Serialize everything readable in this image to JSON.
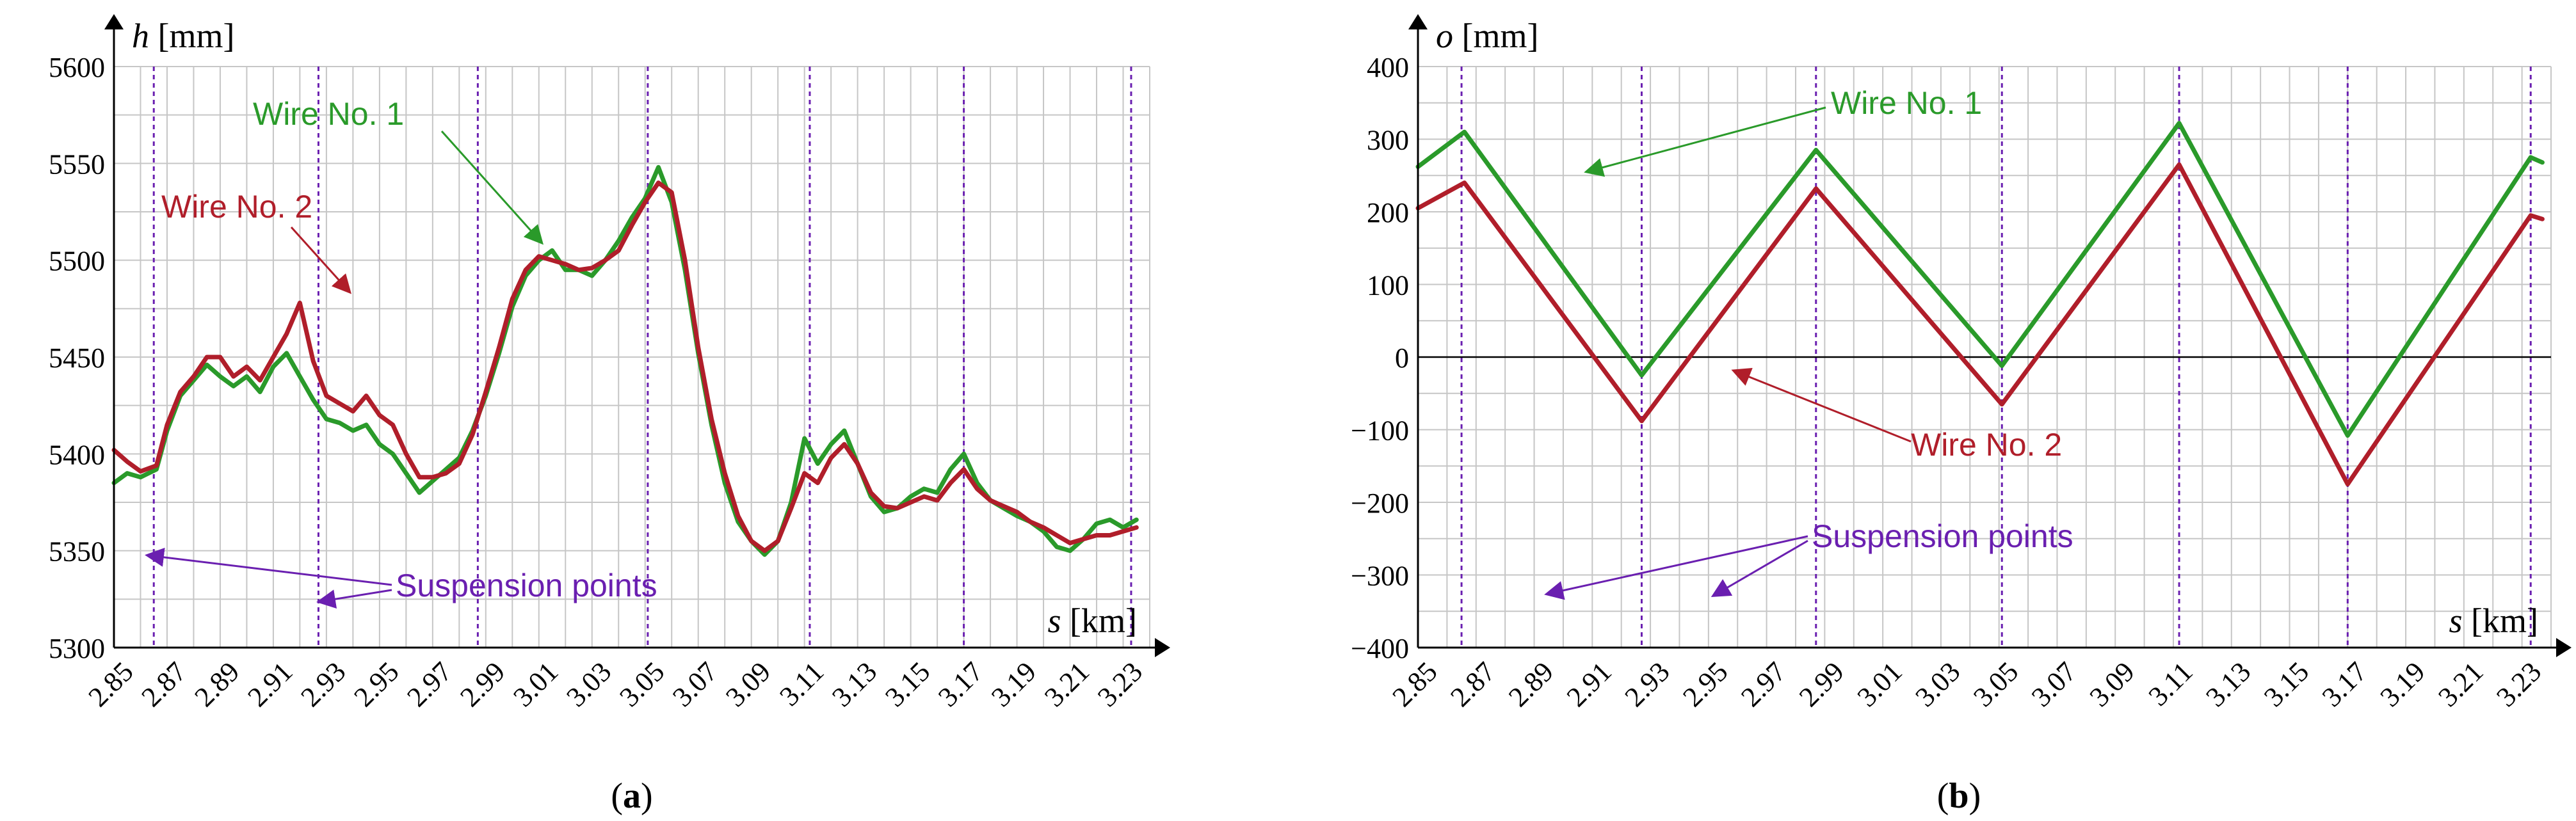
{
  "chart_data": [
    {
      "type": "line",
      "panel_label": "a",
      "ylabel_symbol": "h",
      "ylabel_unit": "[mm]",
      "xlabel_symbol": "s",
      "xlabel_unit": "[km]",
      "xlim": [
        2.85,
        3.24
      ],
      "ylim": [
        5300,
        5600
      ],
      "y_ticks": [
        "5300",
        "5350",
        "5400",
        "5450",
        "5500",
        "5550",
        "5600"
      ],
      "x_ticks": [
        "2.85",
        "2.87",
        "2.89",
        "2.91",
        "2.93",
        "2.95",
        "2.97",
        "2.99",
        "3.01",
        "3.03",
        "3.05",
        "3.07",
        "3.09",
        "3.11",
        "3.13",
        "3.15",
        "3.17",
        "3.19",
        "3.21",
        "3.23"
      ],
      "grid": true,
      "suspension_points": [
        2.865,
        2.927,
        2.987,
        3.051,
        3.112,
        3.17,
        3.233
      ],
      "series": [
        {
          "name": "Wire No. 1",
          "color": "#2a9a2a",
          "points": [
            [
              2.85,
              5385
            ],
            [
              2.855,
              5390
            ],
            [
              2.86,
              5388
            ],
            [
              2.866,
              5392
            ],
            [
              2.87,
              5412
            ],
            [
              2.875,
              5430
            ],
            [
              2.88,
              5438
            ],
            [
              2.885,
              5446
            ],
            [
              2.89,
              5440
            ],
            [
              2.895,
              5435
            ],
            [
              2.9,
              5440
            ],
            [
              2.905,
              5432
            ],
            [
              2.91,
              5445
            ],
            [
              2.915,
              5452
            ],
            [
              2.92,
              5440
            ],
            [
              2.925,
              5428
            ],
            [
              2.93,
              5418
            ],
            [
              2.935,
              5416
            ],
            [
              2.94,
              5412
            ],
            [
              2.945,
              5415
            ],
            [
              2.95,
              5405
            ],
            [
              2.955,
              5400
            ],
            [
              2.96,
              5390
            ],
            [
              2.965,
              5380
            ],
            [
              2.97,
              5386
            ],
            [
              2.975,
              5392
            ],
            [
              2.98,
              5398
            ],
            [
              2.985,
              5412
            ],
            [
              2.99,
              5430
            ],
            [
              2.995,
              5452
            ],
            [
              3.0,
              5476
            ],
            [
              3.005,
              5492
            ],
            [
              3.01,
              5500
            ],
            [
              3.015,
              5505
            ],
            [
              3.02,
              5495
            ],
            [
              3.025,
              5495
            ],
            [
              3.03,
              5492
            ],
            [
              3.035,
              5500
            ],
            [
              3.04,
              5510
            ],
            [
              3.045,
              5522
            ],
            [
              3.05,
              5532
            ],
            [
              3.055,
              5548
            ],
            [
              3.06,
              5530
            ],
            [
              3.065,
              5495
            ],
            [
              3.07,
              5452
            ],
            [
              3.075,
              5415
            ],
            [
              3.08,
              5385
            ],
            [
              3.085,
              5365
            ],
            [
              3.09,
              5355
            ],
            [
              3.095,
              5348
            ],
            [
              3.1,
              5355
            ],
            [
              3.105,
              5375
            ],
            [
              3.11,
              5408
            ],
            [
              3.115,
              5395
            ],
            [
              3.12,
              5405
            ],
            [
              3.125,
              5412
            ],
            [
              3.13,
              5395
            ],
            [
              3.135,
              5378
            ],
            [
              3.14,
              5370
            ],
            [
              3.145,
              5372
            ],
            [
              3.15,
              5378
            ],
            [
              3.155,
              5382
            ],
            [
              3.16,
              5380
            ],
            [
              3.165,
              5392
            ],
            [
              3.17,
              5400
            ],
            [
              3.175,
              5385
            ],
            [
              3.18,
              5376
            ],
            [
              3.185,
              5372
            ],
            [
              3.19,
              5368
            ],
            [
              3.195,
              5365
            ],
            [
              3.2,
              5360
            ],
            [
              3.205,
              5352
            ],
            [
              3.21,
              5350
            ],
            [
              3.215,
              5356
            ],
            [
              3.22,
              5364
            ],
            [
              3.225,
              5366
            ],
            [
              3.23,
              5362
            ],
            [
              3.235,
              5366
            ]
          ]
        },
        {
          "name": "Wire No. 2",
          "color": "#b01e2a",
          "points": [
            [
              2.85,
              5402
            ],
            [
              2.855,
              5396
            ],
            [
              2.86,
              5391
            ],
            [
              2.866,
              5394
            ],
            [
              2.87,
              5415
            ],
            [
              2.875,
              5432
            ],
            [
              2.88,
              5440
            ],
            [
              2.885,
              5450
            ],
            [
              2.89,
              5450
            ],
            [
              2.895,
              5440
            ],
            [
              2.9,
              5445
            ],
            [
              2.905,
              5438
            ],
            [
              2.91,
              5450
            ],
            [
              2.915,
              5462
            ],
            [
              2.92,
              5478
            ],
            [
              2.925,
              5448
            ],
            [
              2.93,
              5430
            ],
            [
              2.935,
              5426
            ],
            [
              2.94,
              5422
            ],
            [
              2.945,
              5430
            ],
            [
              2.95,
              5420
            ],
            [
              2.955,
              5415
            ],
            [
              2.96,
              5400
            ],
            [
              2.965,
              5388
            ],
            [
              2.97,
              5388
            ],
            [
              2.975,
              5390
            ],
            [
              2.98,
              5395
            ],
            [
              2.985,
              5410
            ],
            [
              2.99,
              5432
            ],
            [
              2.995,
              5455
            ],
            [
              3.0,
              5480
            ],
            [
              3.005,
              5495
            ],
            [
              3.01,
              5502
            ],
            [
              3.015,
              5500
            ],
            [
              3.02,
              5498
            ],
            [
              3.025,
              5495
            ],
            [
              3.03,
              5496
            ],
            [
              3.035,
              5500
            ],
            [
              3.04,
              5505
            ],
            [
              3.045,
              5518
            ],
            [
              3.05,
              5530
            ],
            [
              3.055,
              5540
            ],
            [
              3.06,
              5535
            ],
            [
              3.065,
              5500
            ],
            [
              3.07,
              5455
            ],
            [
              3.075,
              5418
            ],
            [
              3.08,
              5390
            ],
            [
              3.085,
              5368
            ],
            [
              3.09,
              5355
            ],
            [
              3.095,
              5350
            ],
            [
              3.1,
              5355
            ],
            [
              3.105,
              5372
            ],
            [
              3.11,
              5390
            ],
            [
              3.115,
              5385
            ],
            [
              3.12,
              5398
            ],
            [
              3.125,
              5405
            ],
            [
              3.13,
              5395
            ],
            [
              3.135,
              5380
            ],
            [
              3.14,
              5373
            ],
            [
              3.145,
              5372
            ],
            [
              3.15,
              5375
            ],
            [
              3.155,
              5378
            ],
            [
              3.16,
              5376
            ],
            [
              3.165,
              5385
            ],
            [
              3.17,
              5392
            ],
            [
              3.175,
              5382
            ],
            [
              3.18,
              5376
            ],
            [
              3.185,
              5373
            ],
            [
              3.19,
              5370
            ],
            [
              3.195,
              5365
            ],
            [
              3.2,
              5362
            ],
            [
              3.205,
              5358
            ],
            [
              3.21,
              5354
            ],
            [
              3.215,
              5356
            ],
            [
              3.22,
              5358
            ],
            [
              3.225,
              5358
            ],
            [
              3.23,
              5360
            ],
            [
              3.235,
              5362
            ]
          ]
        }
      ],
      "annotations": [
        {
          "text": "Wire No. 1",
          "color": "#2a9a2a"
        },
        {
          "text": "Wire No. 2",
          "color": "#b01e2a"
        },
        {
          "text": "Suspension points",
          "color": "#6a1fb0"
        }
      ]
    },
    {
      "type": "line",
      "panel_label": "b",
      "ylabel_symbol": "o",
      "ylabel_unit": "[mm]",
      "xlabel_symbol": "s",
      "xlabel_unit": "[km]",
      "xlim": [
        2.85,
        3.24
      ],
      "ylim": [
        -400,
        400
      ],
      "y_ticks": [
        "−400",
        "−300",
        "−200",
        "−100",
        "0",
        "100",
        "200",
        "300",
        "400"
      ],
      "x_ticks": [
        "2.85",
        "2.87",
        "2.89",
        "2.91",
        "2.93",
        "2.95",
        "2.97",
        "2.99",
        "3.01",
        "3.03",
        "3.05",
        "3.07",
        "3.09",
        "3.11",
        "3.13",
        "3.15",
        "3.17",
        "3.19",
        "3.21",
        "3.23"
      ],
      "grid": true,
      "suspension_points": [
        2.865,
        2.927,
        2.987,
        3.051,
        3.112,
        3.17,
        3.233
      ],
      "series": [
        {
          "name": "Wire No. 1",
          "color": "#2a9a2a",
          "points": [
            [
              2.85,
              262
            ],
            [
              2.866,
              310
            ],
            [
              2.927,
              -25
            ],
            [
              2.987,
              285
            ],
            [
              3.051,
              -12
            ],
            [
              3.112,
              322
            ],
            [
              3.17,
              -108
            ],
            [
              3.233,
              275
            ],
            [
              3.237,
              268
            ]
          ]
        },
        {
          "name": "Wire No. 2",
          "color": "#b01e2a",
          "points": [
            [
              2.85,
              205
            ],
            [
              2.866,
              240
            ],
            [
              2.927,
              -88
            ],
            [
              2.987,
              232
            ],
            [
              3.051,
              -65
            ],
            [
              3.112,
              265
            ],
            [
              3.17,
              -175
            ],
            [
              3.233,
              195
            ],
            [
              3.237,
              190
            ]
          ]
        }
      ],
      "annotations": [
        {
          "text": "Wire No. 1",
          "color": "#2a9a2a"
        },
        {
          "text": "Wire No. 2",
          "color": "#b01e2a"
        },
        {
          "text": "Suspension points",
          "color": "#6a1fb0"
        }
      ]
    }
  ]
}
